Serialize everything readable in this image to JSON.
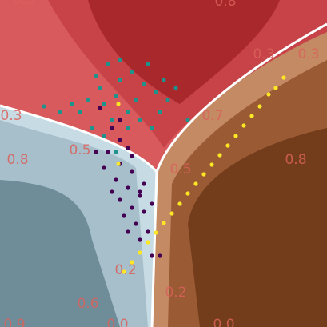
{
  "chart_data": {
    "type": "scatter",
    "xlim": [
      0,
      409
    ],
    "ylim": [
      409,
      0
    ],
    "contour_labels": [
      "0.5",
      "0.8",
      "0.3",
      "0.3",
      "0.7",
      "0.3",
      "0.8",
      "0.5",
      "0.5",
      "0.8",
      "0.2",
      "0.6",
      "0.2",
      "0.0",
      "0.9",
      "0.0"
    ],
    "series": [
      {
        "color": "#21918c",
        "x": [
          120,
          135,
          150,
          165,
          180,
          195,
          210,
          145,
          130,
          110,
          90,
          160,
          175,
          200,
          220,
          150,
          185,
          125,
          100,
          140,
          170,
          190,
          75,
          55,
          235,
          205,
          160,
          130,
          115,
          145
        ],
        "y": [
          95,
          80,
          100,
          90,
          105,
          115,
          125,
          120,
          130,
          125,
          130,
          140,
          150,
          140,
          110,
          75,
          80,
          110,
          140,
          150,
          125,
          160,
          140,
          133,
          150,
          100,
          160,
          170,
          160,
          190
        ]
      },
      {
        "color": "#440154",
        "x": [
          125,
          140,
          150,
          160,
          135,
          150,
          165,
          145,
          160,
          175,
          150,
          165,
          180,
          155,
          170,
          185,
          160,
          175,
          190,
          140,
          130,
          190,
          200,
          175,
          120,
          150,
          180,
          165
        ],
        "y": [
          135,
          160,
          175,
          185,
          190,
          205,
          215,
          225,
          235,
          245,
          250,
          260,
          265,
          270,
          280,
          290,
          290,
          300,
          255,
          240,
          210,
          320,
          320,
          240,
          190,
          150,
          230,
          195
        ]
      },
      {
        "color": "#fde725",
        "x": [
          155,
          165,
          175,
          185,
          195,
          205,
          215,
          225,
          235,
          245,
          255,
          265,
          275,
          285,
          295,
          305,
          315,
          325,
          336,
          345,
          355,
          148,
          148
        ],
        "y": [
          340,
          328,
          316,
          303,
          291,
          279,
          267,
          255,
          242,
          230,
          218,
          206,
          194,
          182,
          170,
          157,
          145,
          133,
          118,
          110,
          97,
          130,
          205
        ]
      }
    ]
  }
}
